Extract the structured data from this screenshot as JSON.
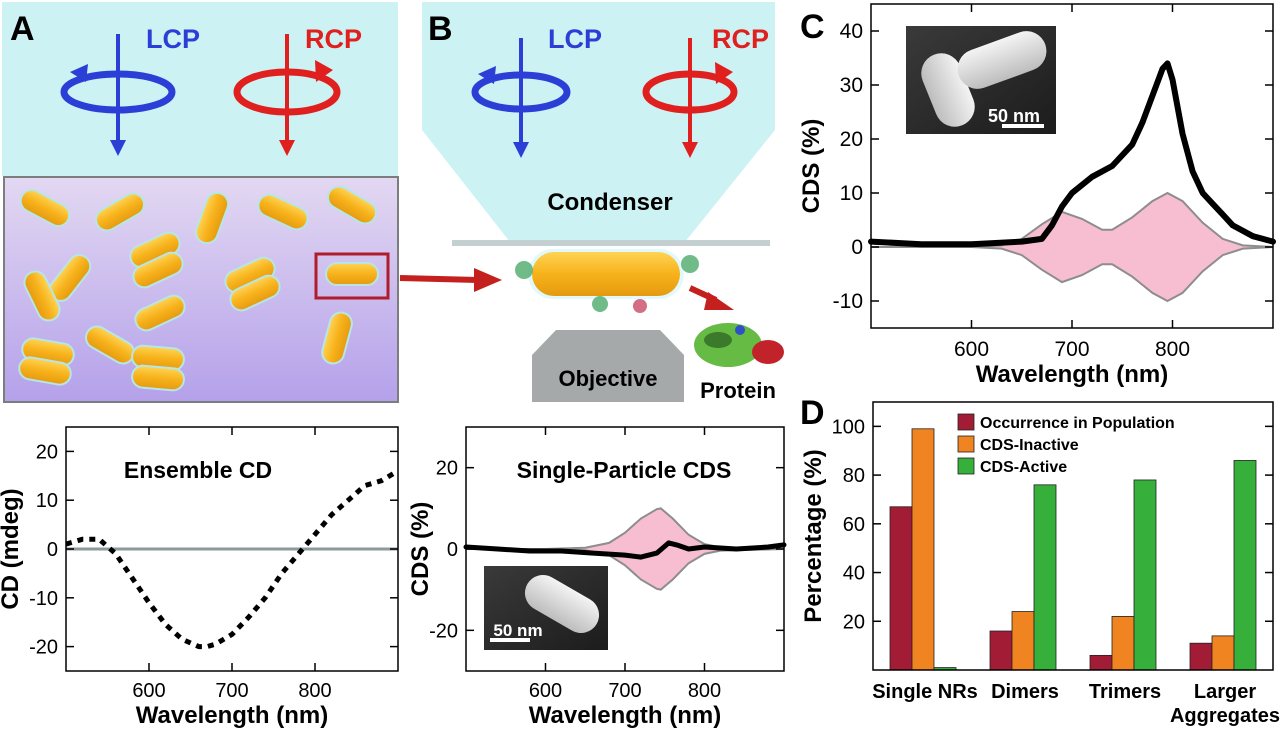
{
  "panels": {
    "A": {
      "letter": "A",
      "lcp_label": "LCP",
      "rcp_label": "RCP",
      "lcp_color": "#2b3fd6",
      "rcp_color": "#e0201e"
    },
    "B": {
      "letter": "B",
      "lcp_label": "LCP",
      "rcp_label": "RCP",
      "condenser_label": "Condenser",
      "objective_label": "Objective",
      "protein_label": "Protein"
    },
    "C": {
      "letter": "C",
      "inset_scale": "50 nm"
    },
    "D": {
      "letter": "D"
    },
    "B_lower": {
      "inset_scale": "50 nm"
    }
  },
  "colors": {
    "sky": "#cdf2f4",
    "sample_bg_top": "#d9cdf0",
    "sample_bg_bottom": "#b9a6ea",
    "nanorod": "#f5b41f",
    "envelope_fill": "#f7bdd0",
    "envelope_stroke": "#8d8d8d",
    "bar_occurrence": "#a31c36",
    "bar_inactive": "#ef8420",
    "bar_active": "#36b03a"
  },
  "chart_data": [
    {
      "id": "ensemble-cd",
      "type": "line",
      "title": "Ensemble CD",
      "xlabel": "Wavelength (nm)",
      "ylabel": "CD (mdeg)",
      "xlim": [
        500,
        900
      ],
      "ylim": [
        -25,
        25
      ],
      "xticks": [
        600,
        700,
        800
      ],
      "yticks": [
        20,
        10,
        0,
        -10,
        -20
      ],
      "grid": false,
      "line_style": "dotted",
      "zero_line": true,
      "series": [
        {
          "x": [
            500,
            520,
            540,
            560,
            580,
            600,
            620,
            640,
            660,
            670,
            680,
            700,
            720,
            740,
            760,
            780,
            800,
            820,
            840,
            860,
            880,
            900
          ],
          "y": [
            1,
            2,
            2,
            -1,
            -6,
            -11,
            -15.5,
            -18.5,
            -20,
            -20,
            -19.5,
            -17.5,
            -14,
            -10,
            -5,
            -1,
            3,
            7,
            10,
            13,
            14,
            16
          ]
        }
      ]
    },
    {
      "id": "single-particle-cds",
      "type": "line",
      "title": "Single-Particle CDS",
      "xlabel": "Wavelength (nm)",
      "ylabel": "CDS (%)",
      "xlim": [
        500,
        900
      ],
      "ylim": [
        -30,
        30
      ],
      "xticks": [
        600,
        700,
        800
      ],
      "yticks": [
        20,
        0,
        -20
      ],
      "grid": false,
      "envelope": {
        "x": [
          500,
          600,
          650,
          680,
          700,
          720,
          740,
          745,
          760,
          780,
          800,
          820,
          900
        ],
        "upper": [
          0,
          0,
          0.3,
          1.5,
          4,
          7.5,
          9.8,
          10,
          7.5,
          3.5,
          1.2,
          0.4,
          0
        ],
        "lower": [
          0,
          0,
          -0.3,
          -1.5,
          -4,
          -7.5,
          -9.8,
          -10,
          -7.5,
          -3.5,
          -1.2,
          -0.4,
          0
        ]
      },
      "series": [
        {
          "x": [
            500,
            540,
            580,
            620,
            660,
            700,
            720,
            740,
            755,
            765,
            780,
            800,
            840,
            880,
            900
          ],
          "y": [
            0.5,
            0,
            -0.5,
            -0.5,
            -1,
            -1.5,
            -2,
            -1,
            1.5,
            1,
            0,
            0.5,
            0,
            0.5,
            1
          ]
        }
      ]
    },
    {
      "id": "cds-spectrum",
      "type": "line",
      "xlabel": "Wavelength (nm)",
      "ylabel": "CDS (%)",
      "xlim": [
        500,
        900
      ],
      "ylim": [
        -15,
        45
      ],
      "xticks": [
        600,
        700,
        800
      ],
      "yticks": [
        40,
        30,
        20,
        10,
        0,
        -10
      ],
      "grid": false,
      "envelope": {
        "x": [
          500,
          600,
          630,
          650,
          670,
          690,
          710,
          730,
          740,
          760,
          780,
          795,
          810,
          830,
          850,
          870,
          900
        ],
        "upper": [
          0,
          0,
          0.3,
          1.5,
          4.2,
          6.5,
          5.2,
          3.2,
          3.2,
          5.5,
          8.5,
          10,
          8.5,
          4.5,
          1.5,
          0.3,
          0
        ],
        "lower": [
          0,
          0,
          -0.3,
          -1.5,
          -4.2,
          -6.5,
          -5.2,
          -3.2,
          -3.2,
          -5.5,
          -8.5,
          -10,
          -8.5,
          -4.5,
          -1.5,
          -0.3,
          0
        ]
      },
      "series": [
        {
          "x": [
            500,
            550,
            600,
            650,
            670,
            680,
            690,
            700,
            720,
            740,
            760,
            770,
            780,
            790,
            795,
            800,
            810,
            820,
            830,
            840,
            850,
            860,
            880,
            900
          ],
          "y": [
            1,
            0.5,
            0.5,
            1,
            1.5,
            4,
            7.5,
            10,
            13,
            15,
            19,
            23,
            28,
            33,
            34,
            31,
            21,
            14,
            10,
            8,
            6,
            4,
            2,
            1
          ]
        }
      ]
    },
    {
      "id": "percentage-bars",
      "type": "bar",
      "ylabel": "Percentage (%)",
      "ylim": [
        0,
        110
      ],
      "yticks": [
        20,
        40,
        60,
        80,
        100
      ],
      "legend_position": "top-left",
      "grid": false,
      "categories": [
        "Single NRs",
        "Dimers",
        "Trimers",
        "Larger\nAggregates"
      ],
      "category_lines": [
        [
          "Single NRs"
        ],
        [
          "Dimers"
        ],
        [
          "Trimers"
        ],
        [
          "Larger",
          "Aggregates"
        ]
      ],
      "series": [
        {
          "name": "Occurrence in Population",
          "values": [
            67,
            16,
            6,
            11
          ]
        },
        {
          "name": "CDS-Inactive",
          "values": [
            99,
            24,
            22,
            14
          ]
        },
        {
          "name": "CDS-Active",
          "values": [
            1,
            76,
            78,
            86
          ]
        }
      ]
    }
  ]
}
